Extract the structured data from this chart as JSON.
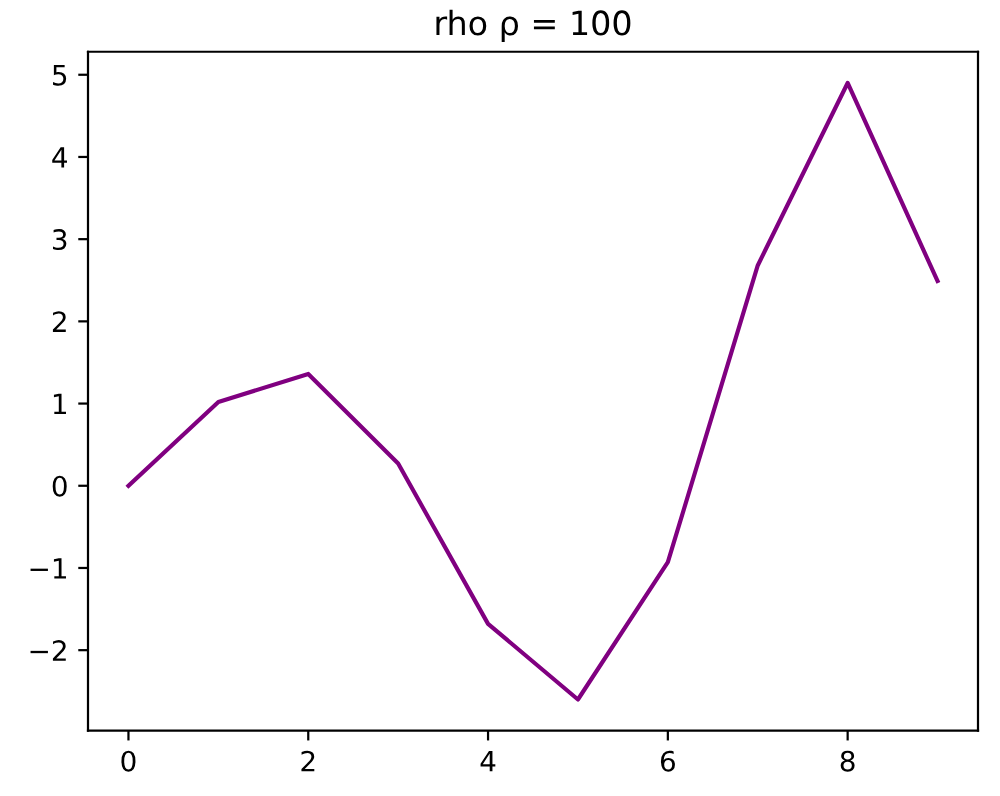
{
  "chart_data": {
    "type": "line",
    "title": "rho ρ = 100",
    "x": [
      0,
      1,
      2,
      3,
      4,
      5,
      6,
      7,
      8,
      9
    ],
    "series": [
      {
        "color": "#800080",
        "values": [
          0,
          1.02,
          1.36,
          0.27,
          -1.68,
          -2.6,
          -0.93,
          2.68,
          4.9,
          2.49
        ]
      }
    ],
    "xlim": [
      -0.45,
      9.45
    ],
    "xticks": [
      0,
      2,
      4,
      6,
      8
    ],
    "ylim": [
      -2.98,
      5.28
    ],
    "yticks": [
      {
        "value": -2,
        "label": "−2"
      },
      {
        "value": -1,
        "label": "−1"
      },
      0,
      1,
      2,
      3,
      4,
      5
    ],
    "grid": false,
    "legend": false
  }
}
